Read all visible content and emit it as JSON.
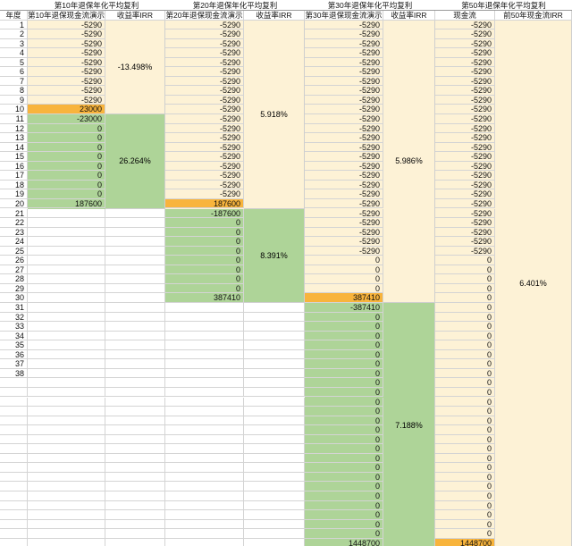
{
  "titles": [
    "第10年退保年化平均复利",
    "第20年退保年化平均复利",
    "第30年退保年化平均复利",
    "第50年退保年化平均复利"
  ],
  "headers": {
    "year": "年度",
    "c10": "第10年退保现金流演示",
    "irr10": "收益率IRR",
    "c20": "第20年退保现金流演示",
    "irr20": "收益率IRR",
    "c30": "第30年退保现金流演示",
    "irr30": "收益率IRR",
    "c50": "现金流",
    "irr50": "前50年现金流IRR"
  },
  "irr": {
    "y10": "-13.498%",
    "y10b": "26.264%",
    "y20": "5.918%",
    "y20b": "8.391%",
    "y30": "5.986%",
    "y30b": "7.188%",
    "y50": "6.401%"
  },
  "years": [
    "1",
    "2",
    "3",
    "4",
    "5",
    "6",
    "7",
    "8",
    "9",
    "10",
    "11",
    "12",
    "13",
    "14",
    "15",
    "16",
    "17",
    "18",
    "19",
    "20",
    "21",
    "22",
    "23",
    "24",
    "25",
    "26",
    "27",
    "28",
    "29",
    "30",
    "31",
    "32",
    "33",
    "34",
    "35",
    "36",
    "37",
    "38"
  ],
  "col10": [
    "-5290",
    "-5290",
    "-5290",
    "-5290",
    "-5290",
    "-5290",
    "-5290",
    "-5290",
    "-5290",
    "23000",
    "-23000",
    "0",
    "0",
    "0",
    "0",
    "0",
    "0",
    "0",
    "0",
    "187600"
  ],
  "col20": [
    "-5290",
    "-5290",
    "-5290",
    "-5290",
    "-5290",
    "-5290",
    "-5290",
    "-5290",
    "-5290",
    "-5290",
    "-5290",
    "-5290",
    "-5290",
    "-5290",
    "-5290",
    "-5290",
    "-5290",
    "-5290",
    "-5290",
    "187600",
    "-187600",
    "0",
    "0",
    "0",
    "0",
    "0",
    "0",
    "0",
    "0",
    "387410"
  ],
  "col30": [
    "-5290",
    "-5290",
    "-5290",
    "-5290",
    "-5290",
    "-5290",
    "-5290",
    "-5290",
    "-5290",
    "-5290",
    "-5290",
    "-5290",
    "-5290",
    "-5290",
    "-5290",
    "-5290",
    "-5290",
    "-5290",
    "-5290",
    "-5290",
    "-5290",
    "-5290",
    "-5290",
    "-5290",
    "-5290",
    "0",
    "0",
    "0",
    "0",
    "387410",
    "-387410",
    "0",
    "0",
    "0",
    "0",
    "0",
    "0",
    "0",
    "0",
    "0",
    "0",
    "0",
    "0",
    "0",
    "0",
    "0",
    "0",
    "0",
    "0",
    "0",
    "0",
    "0",
    "0",
    "0",
    "0",
    "1448700"
  ],
  "col50": [
    "-5290",
    "-5290",
    "-5290",
    "-5290",
    "-5290",
    "-5290",
    "-5290",
    "-5290",
    "-5290",
    "-5290",
    "-5290",
    "-5290",
    "-5290",
    "-5290",
    "-5290",
    "-5290",
    "-5290",
    "-5290",
    "-5290",
    "-5290",
    "-5290",
    "-5290",
    "-5290",
    "-5290",
    "-5290",
    "0",
    "0",
    "0",
    "0",
    "0",
    "0",
    "0",
    "0",
    "0",
    "0",
    "0",
    "0",
    "0",
    "0",
    "0",
    "0",
    "0",
    "0",
    "0",
    "0",
    "0",
    "0",
    "0",
    "0",
    "0",
    "0",
    "0",
    "0",
    "0",
    "0",
    "1448700"
  ]
}
